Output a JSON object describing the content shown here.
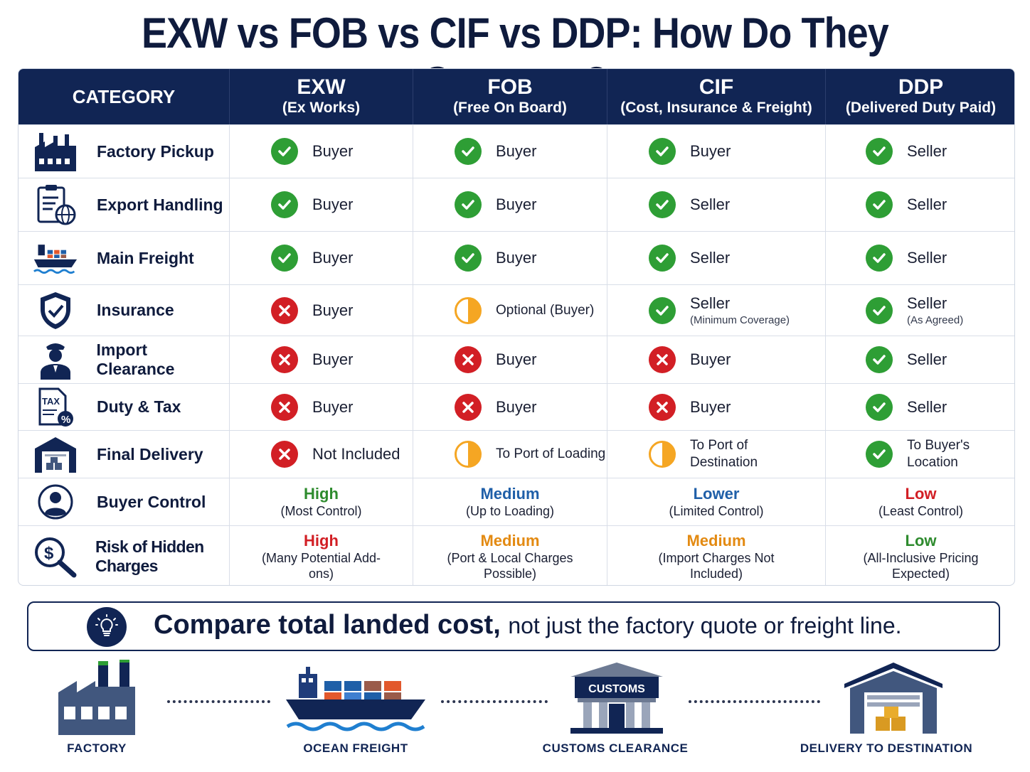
{
  "title": "EXW vs FOB vs CIF vs DDP: How Do They Compare?",
  "header": {
    "category": "CATEGORY",
    "terms": [
      {
        "code": "EXW",
        "full": "(Ex Works)"
      },
      {
        "code": "FOB",
        "full": "(Free On Board)"
      },
      {
        "code": "CIF",
        "full": "(Cost, Insurance & Freight)"
      },
      {
        "code": "DDP",
        "full": "(Delivered Duty Paid)"
      }
    ]
  },
  "rows": [
    {
      "label": "Factory Pickup",
      "icon": "factory-icon",
      "cells": [
        {
          "status": "check",
          "main": "Buyer"
        },
        {
          "status": "check",
          "main": "Buyer"
        },
        {
          "status": "check",
          "main": "Buyer"
        },
        {
          "status": "check",
          "main": "Seller"
        }
      ]
    },
    {
      "label": "Export Handling",
      "icon": "clipboard-globe-icon",
      "cells": [
        {
          "status": "check",
          "main": "Buyer"
        },
        {
          "status": "check",
          "main": "Buyer"
        },
        {
          "status": "check",
          "main": "Seller"
        },
        {
          "status": "check",
          "main": "Seller"
        }
      ]
    },
    {
      "label": "Main Freight",
      "icon": "cargo-ship-icon",
      "cells": [
        {
          "status": "check",
          "main": "Buyer"
        },
        {
          "status": "check",
          "main": "Buyer"
        },
        {
          "status": "check",
          "main": "Seller"
        },
        {
          "status": "check",
          "main": "Seller"
        }
      ]
    },
    {
      "label": "Insurance",
      "icon": "shield-check-icon",
      "cells": [
        {
          "status": "cross",
          "main": "Buyer"
        },
        {
          "status": "half",
          "main": "Optional (Buyer)"
        },
        {
          "status": "check",
          "main": "Seller",
          "sub": "(Minimum Coverage)"
        },
        {
          "status": "check",
          "main": "Seller",
          "sub": "(As Agreed)"
        }
      ]
    },
    {
      "label": "Import Clearance",
      "icon": "customs-officer-icon",
      "cells": [
        {
          "status": "cross",
          "main": "Buyer"
        },
        {
          "status": "cross",
          "main": "Buyer"
        },
        {
          "status": "cross",
          "main": "Buyer"
        },
        {
          "status": "check",
          "main": "Seller"
        }
      ]
    },
    {
      "label": "Duty & Tax",
      "icon": "tax-document-icon",
      "cells": [
        {
          "status": "cross",
          "main": "Buyer"
        },
        {
          "status": "cross",
          "main": "Buyer"
        },
        {
          "status": "cross",
          "main": "Buyer"
        },
        {
          "status": "check",
          "main": "Seller"
        }
      ]
    },
    {
      "label": "Final Delivery",
      "icon": "warehouse-icon",
      "cells": [
        {
          "status": "cross",
          "main": "Not Included"
        },
        {
          "status": "half",
          "main": "To Port of Loading"
        },
        {
          "status": "half",
          "main": "To Port of Destination"
        },
        {
          "status": "check",
          "main": "To Buyer's Location"
        }
      ]
    }
  ],
  "ratings": [
    {
      "label": "Buyer Control",
      "icon": "user-circle-icon",
      "cells": [
        {
          "level": "High",
          "color": "#2e8b2e",
          "note": "(Most Control)"
        },
        {
          "level": "Medium",
          "color": "#1f5fa8",
          "note": "(Up to Loading)"
        },
        {
          "level": "Lower",
          "color": "#1f5fa8",
          "note": "(Limited Control)"
        },
        {
          "level": "Low",
          "color": "#d21f25",
          "note": "(Least Control)"
        }
      ]
    },
    {
      "label": "Risk of Hidden Charges",
      "icon": "dollar-search-icon",
      "cells": [
        {
          "level": "High",
          "color": "#d21f25",
          "note": "(Many Potential Add-ons)"
        },
        {
          "level": "Medium",
          "color": "#e38a12",
          "note": "(Port & Local Charges Possible)"
        },
        {
          "level": "Medium",
          "color": "#e38a12",
          "note": "(Import Charges Not Included)"
        },
        {
          "level": "Low",
          "color": "#2e8b2e",
          "note": "(All-Inclusive Pricing Expected)"
        }
      ]
    }
  ],
  "banner": {
    "bold": "Compare total landed cost,",
    "rest": "not just the factory quote or freight line."
  },
  "flow": [
    {
      "label": "FACTORY",
      "icon": "factory-icon"
    },
    {
      "label": "OCEAN FREIGHT",
      "icon": "cargo-ship-icon"
    },
    {
      "label": "CUSTOMS CLEARANCE",
      "icon": "customs-building-icon",
      "sign": "CUSTOMS"
    },
    {
      "label": "DELIVERY TO DESTINATION",
      "icon": "warehouse-icon"
    }
  ],
  "colors": {
    "navy": "#112554",
    "check": "#2e9e35",
    "cross": "#d21f25",
    "partial": "#f5a623"
  }
}
